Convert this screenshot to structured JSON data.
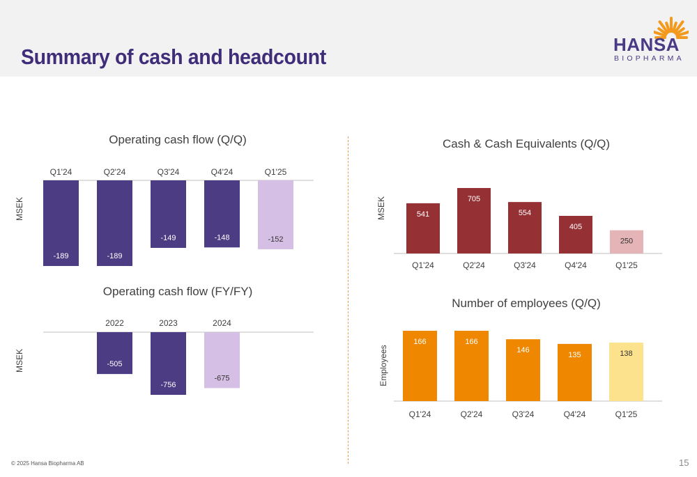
{
  "header": {
    "title": "Summary of cash and headcount",
    "logo_word": "HANSA",
    "logo_sub": "BIOPHARMA"
  },
  "footer": {
    "copyright": "© 2025 Hansa Biopharma AB",
    "page_number": "15"
  },
  "colors": {
    "purple": "#4b3c84",
    "purple_light": "#d6bfe4",
    "red": "#953034",
    "red_light": "#e4b4b6",
    "orange": "#ef8800",
    "orange_light": "#fde28e",
    "divider": "#e8a050",
    "title": "#3f2d7a",
    "logo_sun": "#f39a1e"
  },
  "chart_data": [
    {
      "id": "ocf-qq",
      "type": "bar",
      "title": "Operating cash flow (Q/Q)",
      "ylabel": "MSEK",
      "xlabel": "",
      "categories": [
        "Q1'24",
        "Q2'24",
        "Q3'24",
        "Q4'24",
        "Q1'25"
      ],
      "values": [
        -189,
        -189,
        -149,
        -148,
        -152
      ],
      "value_labels": [
        "-189",
        "-189",
        "-149",
        "-148",
        "-152"
      ],
      "highlight_last": true,
      "category_axis": "top",
      "ylim": [
        -189,
        0
      ]
    },
    {
      "id": "ocf-fy",
      "type": "bar",
      "title": "Operating cash flow (FY/FY)",
      "ylabel": "MSEK",
      "xlabel": "",
      "categories": [
        "",
        "2022",
        "2023",
        "2024",
        ""
      ],
      "values": [
        null,
        -505,
        -756,
        -675,
        null
      ],
      "value_labels": [
        "",
        "-505",
        "-756",
        "-675",
        ""
      ],
      "highlight_last_value": true,
      "category_axis": "top",
      "ylim": [
        -756,
        0
      ]
    },
    {
      "id": "cash-qq",
      "type": "bar",
      "title": "Cash & Cash Equivalents (Q/Q)",
      "ylabel": "MSEK",
      "xlabel": "",
      "categories": [
        "Q1'24",
        "Q2'24",
        "Q3'24",
        "Q4'24",
        "Q1'25"
      ],
      "values": [
        541,
        705,
        554,
        405,
        250
      ],
      "value_labels": [
        "541",
        "705",
        "554",
        "405",
        "250"
      ],
      "highlight_last": true,
      "category_axis": "bottom",
      "ylim": [
        0,
        705
      ]
    },
    {
      "id": "emp-qq",
      "type": "bar",
      "title": "Number of employees (Q/Q)",
      "ylabel": "Employees",
      "xlabel": "",
      "categories": [
        "Q1'24",
        "Q2'24",
        "Q3'24",
        "Q4'24",
        "Q1'25"
      ],
      "values": [
        166,
        166,
        146,
        135,
        138
      ],
      "value_labels": [
        "166",
        "166",
        "146",
        "135",
        "138"
      ],
      "highlight_last": true,
      "category_axis": "bottom",
      "ylim": [
        0,
        166
      ]
    }
  ]
}
